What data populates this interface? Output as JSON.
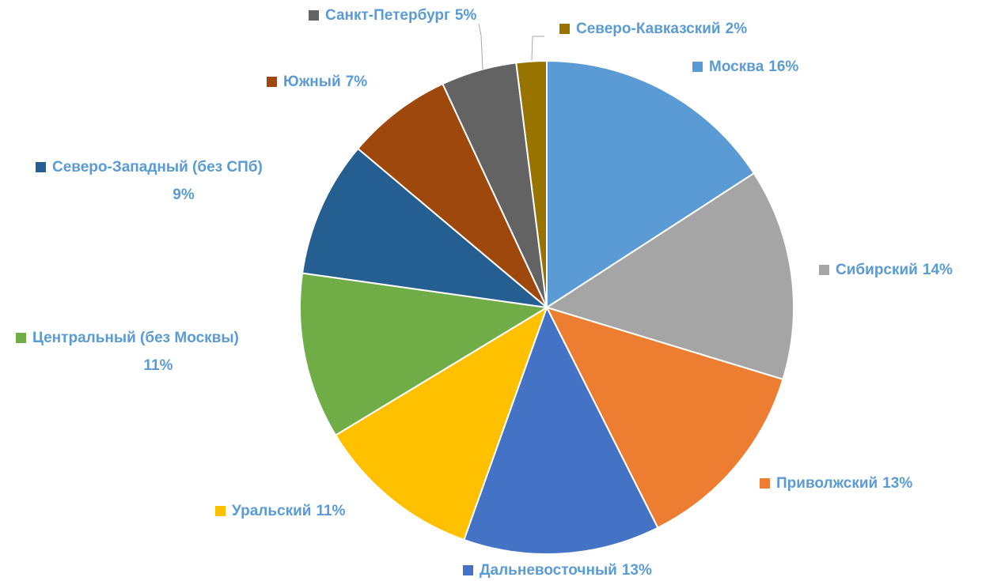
{
  "chart_data": {
    "type": "pie",
    "categories": [
      "Москва",
      "Сибирский",
      "Приволжский",
      "Дальневосточный",
      "Уральский",
      "Центральный (без Москвы)",
      "Северо-Западный (без СПб)",
      "Южный",
      "Санкт-Петербург",
      "Северо-Кавказский"
    ],
    "values": [
      16,
      14,
      13,
      13,
      11,
      11,
      9,
      7,
      5,
      2
    ],
    "value_labels": [
      "16%",
      "14%",
      "13%",
      "13%",
      "11%",
      "11%",
      "9%",
      "7%",
      "5%",
      "2%"
    ],
    "colors": [
      "#5b9bd5",
      "#a5a5a5",
      "#ed7d31",
      "#4472c4",
      "#ffc000",
      "#70ad47",
      "#255e91",
      "#9e480e",
      "#636363",
      "#997300"
    ]
  }
}
